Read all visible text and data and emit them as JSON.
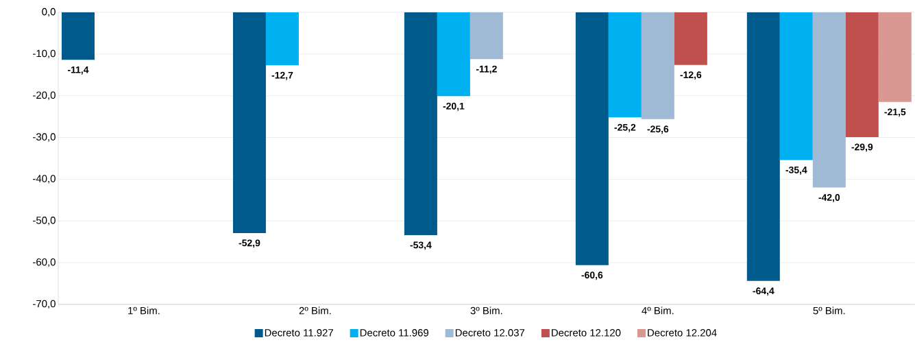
{
  "chart_data": {
    "type": "bar",
    "categories": [
      "1º Bim.",
      "2º Bim.",
      "3º Bim.",
      "4º Bim.",
      "5º Bim."
    ],
    "series": [
      {
        "name": "Decreto 11.927",
        "color": "#005b8c",
        "values": [
          -11.4,
          -52.9,
          -53.4,
          -60.6,
          -64.4
        ],
        "value_labels": [
          "-11,4",
          "-52,9",
          "-53,4",
          "-60,6",
          "-64,4"
        ]
      },
      {
        "name": "Decreto 11.969",
        "color": "#00b0f0",
        "values": [
          null,
          -12.7,
          -20.1,
          -25.2,
          -35.4
        ],
        "value_labels": [
          null,
          "-12,7",
          "-20,1",
          "-25,2",
          "-35,4"
        ]
      },
      {
        "name": "Decreto 12.037",
        "color": "#a0bad5",
        "values": [
          null,
          null,
          -11.2,
          -25.6,
          -42.0
        ],
        "value_labels": [
          null,
          null,
          "-11,2",
          "-25,6",
          "-42,0"
        ]
      },
      {
        "name": "Decreto 12.120",
        "color": "#c0504d",
        "values": [
          null,
          null,
          null,
          -12.6,
          -29.9
        ],
        "value_labels": [
          null,
          null,
          null,
          "-12,6",
          "-29,9"
        ]
      },
      {
        "name": "Decreto 12.204",
        "color": "#d99891",
        "values": [
          null,
          null,
          null,
          null,
          -21.5
        ],
        "value_labels": [
          null,
          null,
          null,
          null,
          "-21,5"
        ]
      }
    ],
    "ylim": [
      -70,
      0
    ],
    "yticks": [
      {
        "value": -70,
        "label": "-70,0"
      },
      {
        "value": -60,
        "label": "-60,0"
      },
      {
        "value": -50,
        "label": "-50,0"
      },
      {
        "value": -40,
        "label": "-40,0"
      },
      {
        "value": -30,
        "label": "-30,0"
      },
      {
        "value": -20,
        "label": "-20,0"
      },
      {
        "value": -10,
        "label": "-10,0"
      },
      {
        "value": 0,
        "label": "0,0"
      }
    ],
    "grid": "y",
    "legend": "bottom"
  }
}
